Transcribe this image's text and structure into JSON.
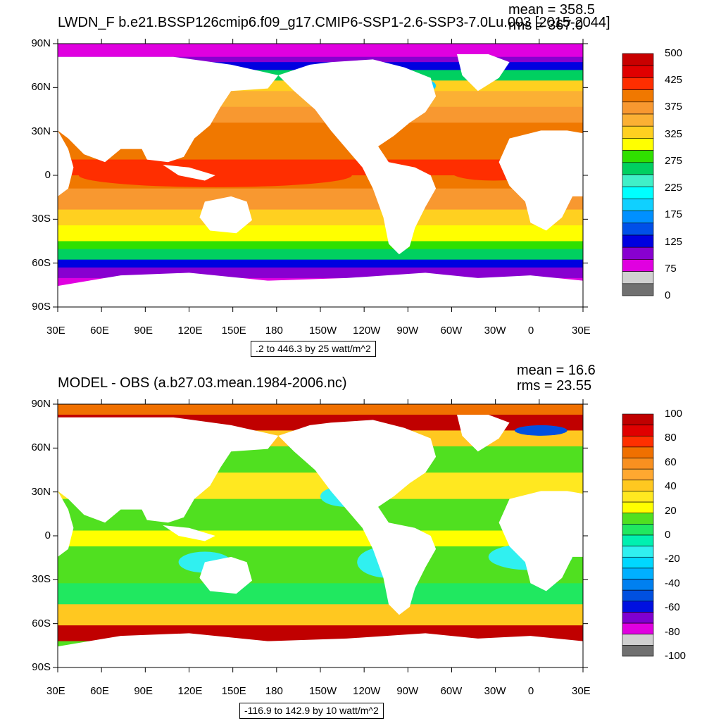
{
  "panels": [
    {
      "title": "LWDN_F b.e21.BSSP126cmip6.f09_g17.CMIP6-SSP1-2.6-SSP3-7.0Lu.003 [2015-2044]",
      "mean": "mean = 358.5",
      "rms": "rms = 367.0",
      "range": ".2 to 446.3 by 25 watt/m^2",
      "lat_ticks": [
        "90N",
        "60N",
        "30N",
        "0",
        "30S",
        "60S",
        "90S"
      ],
      "lon_ticks": [
        "30E",
        "60E",
        "90E",
        "120E",
        "150E",
        "180",
        "150W",
        "120W",
        "90W",
        "60W",
        "30W",
        "0",
        "30E"
      ],
      "colorbar_labels": [
        "500",
        "425",
        "375",
        "325",
        "275",
        "225",
        "175",
        "125",
        "75",
        "0"
      ],
      "colorbar_colors": [
        "#c80000",
        "#e00000",
        "#ff2e00",
        "#f07800",
        "#f89830",
        "#fbb034",
        "#ffd020",
        "#ffff00",
        "#30e000",
        "#00d060",
        "#40f0c8",
        "#00ffff",
        "#10d0ff",
        "#0090ff",
        "#0050e8",
        "#0000e0",
        "#8800d0",
        "#e000e0",
        "#d0d0d0",
        "#707070"
      ]
    },
    {
      "title": "MODEL - OBS (a.b27.03.mean.1984-2006.nc)",
      "mean": "mean = 16.6",
      "rms": "rms = 23.55",
      "range": "-116.9 to 142.9 by 10 watt/m^2",
      "lat_ticks": [
        "90N",
        "60N",
        "30N",
        "0",
        "30S",
        "60S",
        "90S"
      ],
      "lon_ticks": [
        "30E",
        "60E",
        "90E",
        "120E",
        "150E",
        "180",
        "150W",
        "120W",
        "90W",
        "60W",
        "30W",
        "0",
        "30E"
      ],
      "colorbar_labels": [
        "100",
        "80",
        "60",
        "40",
        "20",
        "0",
        "-20",
        "-40",
        "-60",
        "-80",
        "-100"
      ],
      "colorbar_colors": [
        "#c00000",
        "#e00000",
        "#ff3000",
        "#f07000",
        "#f89020",
        "#ffa830",
        "#ffc820",
        "#ffe820",
        "#ffff00",
        "#50e020",
        "#20e860",
        "#00f0b0",
        "#30f0f0",
        "#00d8ff",
        "#00b0ff",
        "#0080f0",
        "#0050e0",
        "#0010e0",
        "#8000d0",
        "#e000e0",
        "#d0d0d0",
        "#707070"
      ]
    }
  ]
}
